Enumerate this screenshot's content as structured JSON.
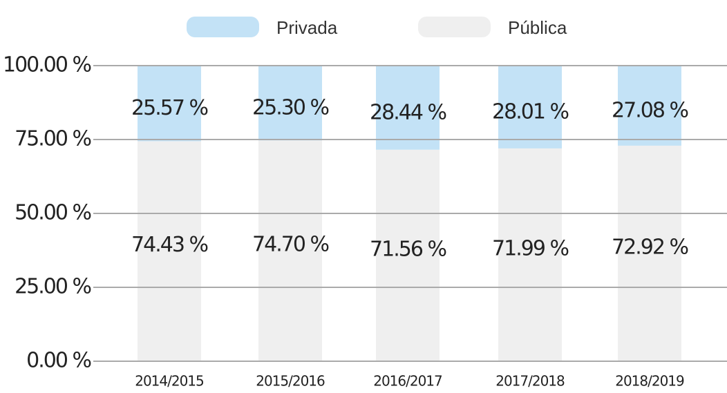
{
  "chart_data": {
    "type": "stacked_bar",
    "categories": [
      "2014/2015",
      "2015/2016",
      "2016/2017",
      "2017/2018",
      "2018/2019"
    ],
    "series": [
      {
        "name": "Privada",
        "color": "#c3e2f6",
        "values": [
          25.57,
          25.3,
          28.44,
          28.01,
          27.08
        ],
        "value_labels": [
          "25.57 %",
          "25.30 %",
          "28.44 %",
          "28.01 %",
          "27.08 %"
        ]
      },
      {
        "name": "Pública",
        "color": "#efefef",
        "values": [
          74.43,
          74.7,
          71.56,
          71.99,
          72.92
        ],
        "value_labels": [
          "74.43 %",
          "74.70 %",
          "71.56 %",
          "71.99 %",
          "72.92 %"
        ]
      }
    ],
    "ylim": [
      0,
      100
    ],
    "yticks": [
      {
        "value": 0,
        "label": "0.00 %"
      },
      {
        "value": 25,
        "label": "25.00 %"
      },
      {
        "value": 50,
        "label": "50.00 %"
      },
      {
        "value": 75,
        "label": "75.00 %"
      },
      {
        "value": 100,
        "label": "100.00 %"
      }
    ],
    "grid": true,
    "legend": "top"
  }
}
